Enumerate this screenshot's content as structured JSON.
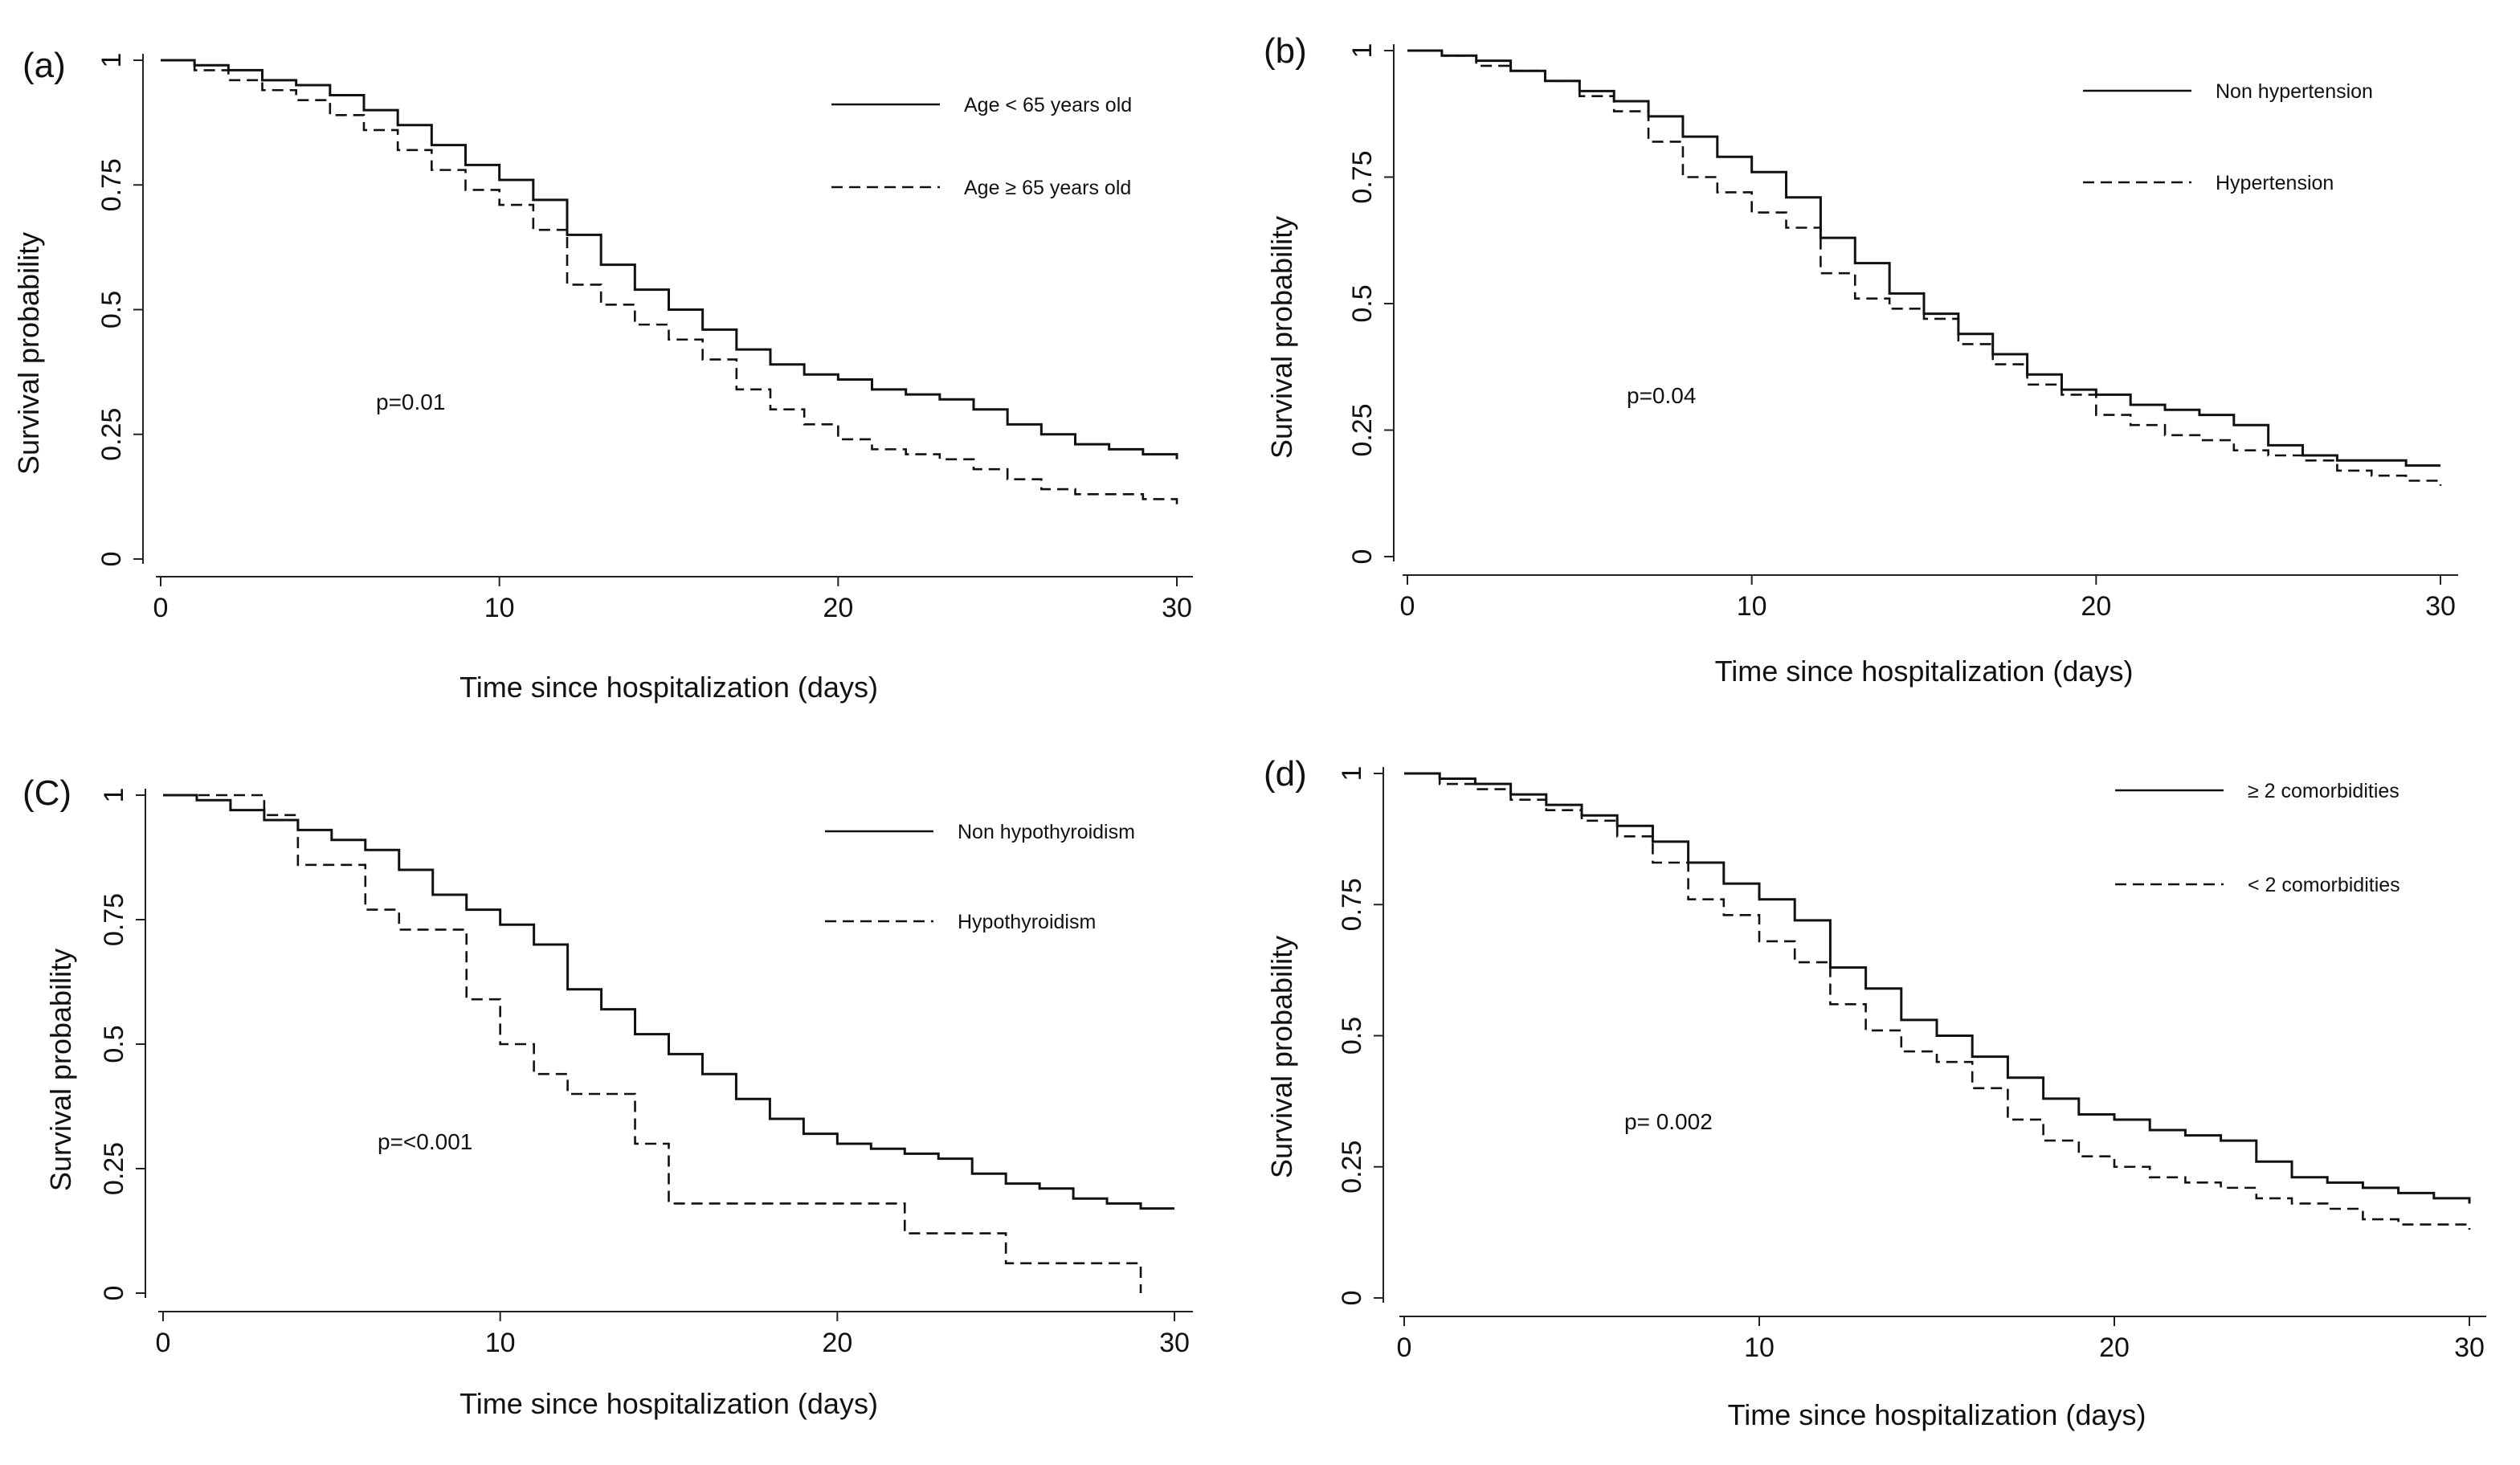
{
  "figure": {
    "description_free": true
  },
  "chart_data": [
    {
      "type": "line",
      "step": true,
      "panel_label": "(a)",
      "title": "",
      "xlabel": "Time since hospitalization (days)",
      "ylabel": "Survival probability",
      "xlim": [
        0,
        30
      ],
      "ylim": [
        0,
        1
      ],
      "xticks": [
        0,
        10,
        20,
        30
      ],
      "yticks": [
        0,
        0.25,
        0.5,
        0.75,
        1
      ],
      "xtick_labels": [
        "0",
        "10",
        "20",
        "30"
      ],
      "ytick_labels": [
        "0",
        "0.25",
        "0.5",
        "0.75",
        "1"
      ],
      "legend_position": "top-right",
      "annotation": "p=0.01",
      "series": [
        {
          "name": "Age < 65 years old",
          "style": "solid",
          "x": [
            0,
            1,
            2,
            3,
            4,
            5,
            6,
            7,
            8,
            9,
            10,
            11,
            12,
            13,
            14,
            15,
            16,
            17,
            18,
            19,
            20,
            21,
            22,
            23,
            24,
            25,
            26,
            27,
            28,
            29,
            30
          ],
          "y": [
            1,
            0.99,
            0.98,
            0.96,
            0.95,
            0.93,
            0.9,
            0.87,
            0.83,
            0.79,
            0.76,
            0.72,
            0.65,
            0.59,
            0.54,
            0.5,
            0.46,
            0.42,
            0.39,
            0.37,
            0.36,
            0.34,
            0.33,
            0.32,
            0.3,
            0.27,
            0.25,
            0.23,
            0.22,
            0.21,
            0.2
          ]
        },
        {
          "name": "Age ≥ 65 years old",
          "style": "dashed",
          "x": [
            0,
            1,
            2,
            3,
            4,
            5,
            6,
            7,
            8,
            9,
            10,
            11,
            12,
            13,
            14,
            15,
            16,
            17,
            18,
            19,
            20,
            21,
            22,
            23,
            24,
            25,
            26,
            27,
            28,
            29,
            30
          ],
          "y": [
            1,
            0.98,
            0.96,
            0.94,
            0.92,
            0.89,
            0.86,
            0.82,
            0.78,
            0.74,
            0.71,
            0.66,
            0.55,
            0.51,
            0.47,
            0.44,
            0.4,
            0.34,
            0.3,
            0.27,
            0.24,
            0.22,
            0.21,
            0.2,
            0.18,
            0.16,
            0.14,
            0.13,
            0.13,
            0.12,
            0.11
          ]
        }
      ]
    },
    {
      "type": "line",
      "step": true,
      "panel_label": "(b)",
      "title": "",
      "xlabel": "Time since hospitalization (days)",
      "ylabel": "Survival probability",
      "xlim": [
        0,
        30
      ],
      "ylim": [
        0,
        1
      ],
      "xticks": [
        0,
        10,
        20,
        30
      ],
      "yticks": [
        0,
        0.25,
        0.5,
        0.75,
        1
      ],
      "xtick_labels": [
        "0",
        "10",
        "20",
        "30"
      ],
      "ytick_labels": [
        "0",
        "0.25",
        "0.5",
        "0.75",
        "1"
      ],
      "legend_position": "top-right",
      "annotation": "p=0.04",
      "series": [
        {
          "name": "Non hypertension",
          "style": "solid",
          "x": [
            0,
            1,
            2,
            3,
            4,
            5,
            6,
            7,
            8,
            9,
            10,
            11,
            12,
            13,
            14,
            15,
            16,
            17,
            18,
            19,
            20,
            21,
            22,
            23,
            24,
            25,
            26,
            27,
            28,
            29,
            30
          ],
          "y": [
            1,
            0.99,
            0.98,
            0.96,
            0.94,
            0.92,
            0.9,
            0.87,
            0.83,
            0.79,
            0.76,
            0.71,
            0.63,
            0.58,
            0.52,
            0.48,
            0.44,
            0.4,
            0.36,
            0.33,
            0.32,
            0.3,
            0.29,
            0.28,
            0.26,
            0.22,
            0.2,
            0.19,
            0.19,
            0.18,
            0.18
          ]
        },
        {
          "name": "Hypertension",
          "style": "dashed",
          "x": [
            0,
            1,
            2,
            3,
            4,
            5,
            6,
            7,
            8,
            9,
            10,
            11,
            12,
            13,
            14,
            15,
            16,
            17,
            18,
            19,
            20,
            21,
            22,
            23,
            24,
            25,
            26,
            27,
            28,
            29,
            30
          ],
          "y": [
            1,
            0.99,
            0.97,
            0.96,
            0.94,
            0.91,
            0.88,
            0.82,
            0.75,
            0.72,
            0.68,
            0.65,
            0.56,
            0.51,
            0.49,
            0.47,
            0.42,
            0.38,
            0.34,
            0.32,
            0.28,
            0.26,
            0.24,
            0.23,
            0.21,
            0.2,
            0.19,
            0.17,
            0.16,
            0.15,
            0.14
          ]
        }
      ]
    },
    {
      "type": "line",
      "step": true,
      "panel_label": "(C)",
      "title": "",
      "xlabel": "Time since hospitalization (days)",
      "ylabel": "Survival probability",
      "xlim": [
        0,
        30
      ],
      "ylim": [
        0,
        1
      ],
      "xticks": [
        0,
        10,
        20,
        30
      ],
      "yticks": [
        0,
        0.25,
        0.5,
        0.75,
        1
      ],
      "xtick_labels": [
        "0",
        "10",
        "20",
        "30"
      ],
      "ytick_labels": [
        "0",
        "0.25",
        "0.5",
        "0.75",
        "1"
      ],
      "legend_position": "top-right",
      "annotation": "p=<0.001",
      "series": [
        {
          "name": "Non hypothyroidism",
          "style": "solid",
          "x": [
            0,
            1,
            2,
            3,
            4,
            5,
            6,
            7,
            8,
            9,
            10,
            11,
            12,
            13,
            14,
            15,
            16,
            17,
            18,
            19,
            20,
            21,
            22,
            23,
            24,
            25,
            26,
            27,
            28,
            29,
            30
          ],
          "y": [
            1,
            0.99,
            0.97,
            0.95,
            0.93,
            0.91,
            0.89,
            0.85,
            0.8,
            0.77,
            0.74,
            0.7,
            0.61,
            0.57,
            0.52,
            0.48,
            0.44,
            0.39,
            0.35,
            0.32,
            0.3,
            0.29,
            0.28,
            0.27,
            0.24,
            0.22,
            0.21,
            0.19,
            0.18,
            0.17,
            0.17
          ]
        },
        {
          "name": "Hypothyroidism",
          "style": "dashed",
          "x": [
            0,
            3,
            4,
            6,
            7,
            9,
            10,
            11,
            12,
            14,
            15,
            22,
            25,
            29
          ],
          "y": [
            1,
            0.96,
            0.86,
            0.77,
            0.73,
            0.59,
            0.5,
            0.44,
            0.4,
            0.3,
            0.18,
            0.12,
            0.06,
            0
          ]
        }
      ]
    },
    {
      "type": "line",
      "step": true,
      "panel_label": "(d)",
      "title": "",
      "xlabel": "Time since hospitalization (days)",
      "ylabel": "Survival probability",
      "xlim": [
        0,
        30
      ],
      "ylim": [
        0,
        1
      ],
      "xticks": [
        0,
        10,
        20,
        30
      ],
      "yticks": [
        0,
        0.25,
        0.5,
        0.75,
        1
      ],
      "xtick_labels": [
        "0",
        "10",
        "20",
        "30"
      ],
      "ytick_labels": [
        "0",
        "0.25",
        "0.5",
        "0.75",
        "1"
      ],
      "legend_position": "top-right",
      "annotation": "p= 0.002",
      "series": [
        {
          "name": "≥ 2 comorbidities",
          "style": "solid",
          "x": [
            0,
            1,
            2,
            3,
            4,
            5,
            6,
            7,
            8,
            9,
            10,
            11,
            12,
            13,
            14,
            15,
            16,
            17,
            18,
            19,
            20,
            21,
            22,
            23,
            24,
            25,
            26,
            27,
            28,
            29,
            30
          ],
          "y": [
            1,
            0.99,
            0.98,
            0.96,
            0.94,
            0.92,
            0.9,
            0.87,
            0.83,
            0.79,
            0.76,
            0.72,
            0.63,
            0.59,
            0.53,
            0.5,
            0.46,
            0.42,
            0.38,
            0.35,
            0.34,
            0.32,
            0.31,
            0.3,
            0.26,
            0.23,
            0.22,
            0.21,
            0.2,
            0.19,
            0.18
          ]
        },
        {
          "name": "< 2 comorbidities",
          "style": "dashed",
          "x": [
            0,
            1,
            2,
            3,
            4,
            5,
            6,
            7,
            8,
            9,
            10,
            11,
            12,
            13,
            14,
            15,
            16,
            17,
            18,
            19,
            20,
            21,
            22,
            23,
            24,
            25,
            26,
            27,
            28,
            29,
            30
          ],
          "y": [
            1,
            0.98,
            0.97,
            0.95,
            0.93,
            0.91,
            0.88,
            0.83,
            0.76,
            0.73,
            0.68,
            0.64,
            0.56,
            0.51,
            0.47,
            0.45,
            0.4,
            0.34,
            0.3,
            0.27,
            0.25,
            0.23,
            0.22,
            0.21,
            0.19,
            0.18,
            0.17,
            0.15,
            0.14,
            0.14,
            0.13
          ]
        }
      ]
    }
  ]
}
